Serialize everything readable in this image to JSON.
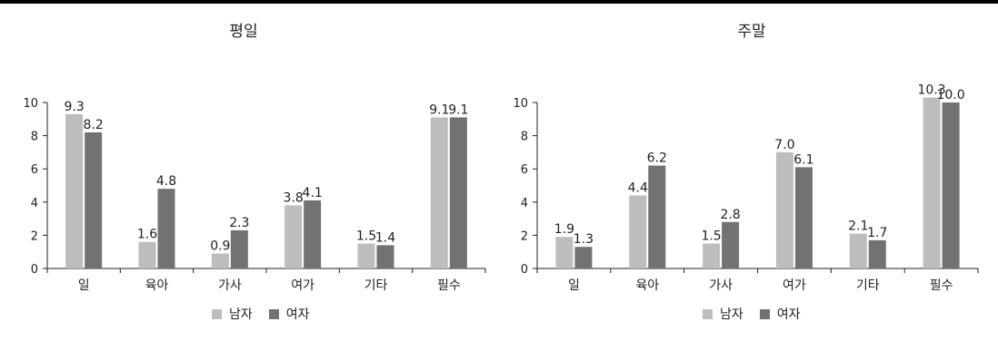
{
  "chart_data": [
    {
      "type": "bar",
      "title": "평일",
      "categories": [
        "일",
        "육아",
        "가사",
        "여가",
        "기타",
        "필수"
      ],
      "series": [
        {
          "name": "남자",
          "color": "#bdbdbf",
          "values": [
            9.3,
            1.6,
            0.9,
            3.8,
            1.5,
            9.1
          ]
        },
        {
          "name": "여자",
          "color": "#727272",
          "values": [
            8.2,
            4.8,
            2.3,
            4.1,
            1.4,
            9.1
          ]
        }
      ],
      "value_labels": {
        "남자": [
          "9.3",
          "1.6",
          "0.9",
          "3.8",
          "1.5",
          "9.1"
        ],
        "여자": [
          "8.2",
          "4.8",
          "2.3",
          "4.1",
          "1.4",
          "9.1"
        ]
      },
      "yticks": [
        "0",
        "2",
        "4",
        "6",
        "8",
        "10"
      ],
      "ylim": [
        0,
        10
      ],
      "grid": false,
      "legend": "bottom-center"
    },
    {
      "type": "bar",
      "title": "주말",
      "categories": [
        "일",
        "육아",
        "가사",
        "여가",
        "기타",
        "필수"
      ],
      "series": [
        {
          "name": "남자",
          "color": "#bdbdbf",
          "values": [
            1.9,
            4.4,
            1.5,
            7.0,
            2.1,
            10.3
          ]
        },
        {
          "name": "여자",
          "color": "#727272",
          "values": [
            1.3,
            6.2,
            2.8,
            6.1,
            1.7,
            10.0
          ]
        }
      ],
      "value_labels": {
        "남자": [
          "1.9",
          "4.4",
          "1.5",
          "7.0",
          "2.1",
          "10.3"
        ],
        "여자": [
          "1.3",
          "6.2",
          "2.8",
          "6.1",
          "1.7",
          "10.0"
        ]
      },
      "yticks": [
        "0",
        "2",
        "4",
        "6",
        "8",
        "10"
      ],
      "ylim": [
        0,
        10
      ],
      "grid": false,
      "legend": "bottom-center"
    }
  ]
}
